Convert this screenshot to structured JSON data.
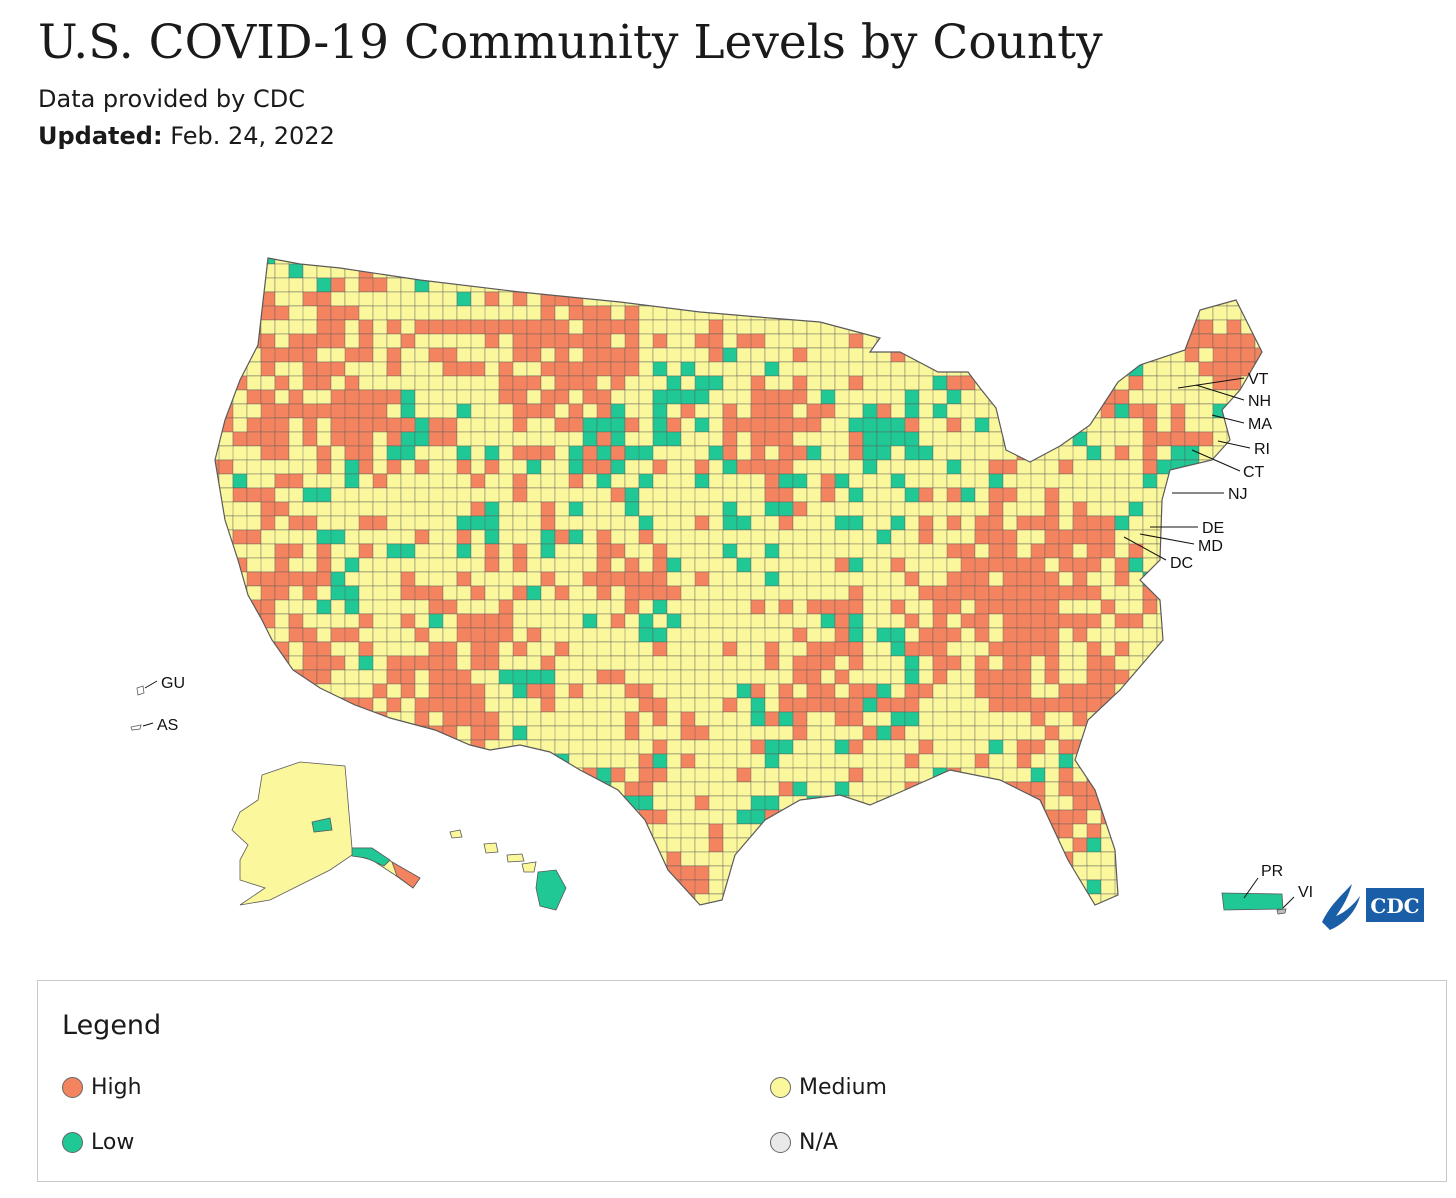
{
  "title": "U.S. COVID-19 Community Levels by County",
  "subtitle": "Data provided by CDC",
  "updated": {
    "label": "Updated:",
    "date": "Feb. 24, 2022"
  },
  "colors": {
    "high": "#f4845f",
    "medium": "#fbf79d",
    "low": "#20c895",
    "na": "#e9e9e9",
    "border": "#5a5a5a",
    "cdc_blue": "#1a5ea8"
  },
  "map": {
    "territory_labels": [
      "GU",
      "AS",
      "PR",
      "VI"
    ],
    "state_callouts": [
      "VT",
      "NH",
      "MA",
      "RI",
      "CT",
      "NJ",
      "DE",
      "MD",
      "DC"
    ],
    "logo_text": "CDC"
  },
  "legend": {
    "title": "Legend",
    "items": [
      {
        "key": "high",
        "label": "High"
      },
      {
        "key": "medium",
        "label": "Medium"
      },
      {
        "key": "low",
        "label": "Low"
      },
      {
        "key": "na",
        "label": "N/A"
      }
    ]
  }
}
